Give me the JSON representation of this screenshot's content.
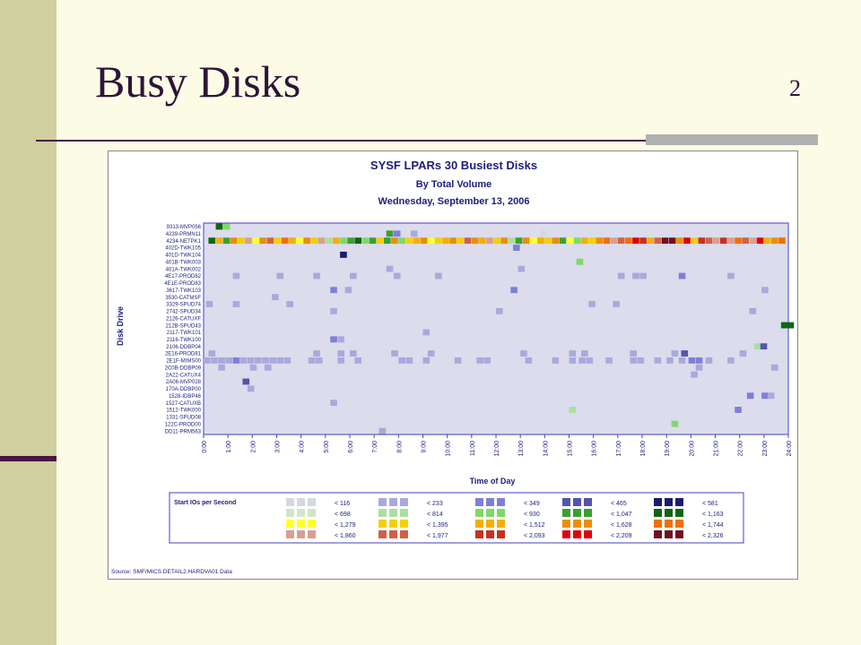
{
  "slide": {
    "title": "Busy Disks",
    "number": "2"
  },
  "chart_data": {
    "type": "heatmap",
    "title": "SYSF LPARs 30 Busiest Disks",
    "subtitle1": "By Total Volume",
    "subtitle2": "Wednesday, September 13, 2006",
    "xlabel": "Time of Day",
    "ylabel": "Disk Drive",
    "xlim": [
      0,
      24
    ],
    "x_ticks": [
      "0:00",
      "1:00",
      "2:00",
      "3:00",
      "4:00",
      "5:00",
      "6:00",
      "7:00",
      "8:00",
      "9:00",
      "10:00",
      "11:00",
      "12:00",
      "13:00",
      "14:00",
      "15:00",
      "16:00",
      "17:00",
      "18:00",
      "19:00",
      "20:00",
      "21:00",
      "22:00",
      "23:00",
      "24:00"
    ],
    "y_labels": [
      "9313-MVP056",
      "4239-PRMN11",
      "4234-NETPK1",
      "402D-TWK105",
      "401D-TWK104",
      "401B-TWK003",
      "401A-TWK002",
      "4E17-PROD82",
      "4E1E-PROD83",
      "3617-TWK103",
      "3530-CATMSF",
      "3329-SPUD74",
      "2742-SPUD34",
      "2126-CATUXF",
      "212B-SPUD43",
      "2117-TWK101",
      "2116-TWK100",
      "2106-DDBP04",
      "2E16-PROD81",
      "2E1F-MIMS00",
      "2C0B-DDBP09",
      "2A22-CATUX4",
      "2A06-MVP028",
      "170A-DDBP00",
      "1528-IDBP46",
      "1527-CATUXB",
      "1512-TWK000",
      "1331-SPUD08",
      "122C-PROD00",
      "DD11-PRM563"
    ],
    "legend_title": "Start IOs per Second",
    "legend": [
      {
        "label": "< 116",
        "colors": [
          "#d7d7e0",
          "#d7d7e0",
          "#d7d7e0"
        ]
      },
      {
        "label": "< 233",
        "colors": [
          "#a9a9dd",
          "#a9a9dd",
          "#a9a9dd"
        ]
      },
      {
        "label": "< 349",
        "colors": [
          "#7f7fd8",
          "#7f7fd8",
          "#7f7fd8"
        ]
      },
      {
        "label": "< 465",
        "colors": [
          "#5454b0",
          "#5454b0",
          "#5454b0"
        ]
      },
      {
        "label": "< 581",
        "colors": [
          "#1c1c6e",
          "#1c1c6e",
          "#1c1c6e"
        ]
      },
      {
        "label": "< 698",
        "colors": [
          "#d0e6c8",
          "#d0e6c8",
          "#d0e6c8"
        ]
      },
      {
        "label": "< 814",
        "colors": [
          "#a8e0a0",
          "#a8e0a0",
          "#a8e0a0"
        ]
      },
      {
        "label": "< 930",
        "colors": [
          "#7ed96a",
          "#7ed96a",
          "#7ed96a"
        ]
      },
      {
        "label": "< 1,047",
        "colors": [
          "#3aa030",
          "#3aa030",
          "#3aa030"
        ]
      },
      {
        "label": "< 1,163",
        "colors": [
          "#0e6614",
          "#0e6614",
          "#0e6614"
        ]
      },
      {
        "label": "< 1,279",
        "colors": [
          "#ffff30",
          "#ffff30",
          "#ffff30"
        ]
      },
      {
        "label": "< 1,395",
        "colors": [
          "#f5d000",
          "#f5d000",
          "#f5d000"
        ]
      },
      {
        "label": "< 1,512",
        "colors": [
          "#f2b000",
          "#f2b000",
          "#f2b000"
        ]
      },
      {
        "label": "< 1,628",
        "colors": [
          "#e89000",
          "#e89000",
          "#e89000"
        ]
      },
      {
        "label": "< 1,744",
        "colors": [
          "#f07000",
          "#f07000",
          "#f07000"
        ]
      },
      {
        "label": "< 1,860",
        "colors": [
          "#d8a090",
          "#d8a090",
          "#d8a090"
        ]
      },
      {
        "label": "< 1,977",
        "colors": [
          "#d06048",
          "#d06048",
          "#d06048"
        ]
      },
      {
        "label": "< 2,093",
        "colors": [
          "#c83020",
          "#c83020",
          "#c83020"
        ]
      },
      {
        "label": "< 2,209",
        "colors": [
          "#e00010",
          "#e00010",
          "#e00010"
        ]
      },
      {
        "label": "< 2,326",
        "colors": [
          "#6e1020",
          "#6e1020",
          "#6e1020"
        ]
      }
    ],
    "source": "Source: SMF/MICS DETAIL2.HARDVA01 Data",
    "background_color": "#dcdcec",
    "cells": [
      {
        "row": 0,
        "hour": 0.5,
        "level": 10
      },
      {
        "row": 0,
        "hour": 0.8,
        "level": 8
      },
      {
        "row": 1,
        "hour": 7.5,
        "level": 9
      },
      {
        "row": 1,
        "hour": 7.8,
        "level": 3
      },
      {
        "row": 1,
        "hour": 8.5,
        "level": 2
      },
      {
        "row": 1,
        "hour": 13.8,
        "level": 1
      },
      {
        "row": 2,
        "hour": 0.2,
        "level": 10
      },
      {
        "row": 2,
        "hour": 0.5,
        "level": 13
      },
      {
        "row": 2,
        "hour": 0.8,
        "level": 9
      },
      {
        "row": 2,
        "hour": 1.1,
        "level": 14
      },
      {
        "row": 2,
        "hour": 1.4,
        "level": 12
      },
      {
        "row": 2,
        "hour": 1.7,
        "level": 16
      },
      {
        "row": 2,
        "hour": 2.0,
        "level": 11
      },
      {
        "row": 2,
        "hour": 2.3,
        "level": 14
      },
      {
        "row": 2,
        "hour": 2.6,
        "level": 17
      },
      {
        "row": 2,
        "hour": 2.9,
        "level": 12
      },
      {
        "row": 2,
        "hour": 3.2,
        "level": 15
      },
      {
        "row": 2,
        "hour": 3.5,
        "level": 13
      },
      {
        "row": 2,
        "hour": 3.8,
        "level": 11
      },
      {
        "row": 2,
        "hour": 4.1,
        "level": 14
      },
      {
        "row": 2,
        "hour": 4.4,
        "level": 12
      },
      {
        "row": 2,
        "hour": 4.7,
        "level": 16
      },
      {
        "row": 2,
        "hour": 5.0,
        "level": 7
      },
      {
        "row": 2,
        "hour": 5.3,
        "level": 13
      },
      {
        "row": 2,
        "hour": 5.6,
        "level": 8
      },
      {
        "row": 2,
        "hour": 5.9,
        "level": 9
      },
      {
        "row": 2,
        "hour": 6.2,
        "level": 10
      },
      {
        "row": 2,
        "hour": 6.5,
        "level": 8
      },
      {
        "row": 2,
        "hour": 6.8,
        "level": 9
      },
      {
        "row": 2,
        "hour": 7.1,
        "level": 12
      },
      {
        "row": 2,
        "hour": 7.4,
        "level": 9
      },
      {
        "row": 2,
        "hour": 7.7,
        "level": 14
      },
      {
        "row": 2,
        "hour": 8.0,
        "level": 8
      },
      {
        "row": 2,
        "hour": 8.3,
        "level": 12
      },
      {
        "row": 2,
        "hour": 8.6,
        "level": 13
      },
      {
        "row": 2,
        "hour": 8.9,
        "level": 14
      },
      {
        "row": 2,
        "hour": 9.2,
        "level": 11
      },
      {
        "row": 2,
        "hour": 9.5,
        "level": 12
      },
      {
        "row": 2,
        "hour": 9.8,
        "level": 13
      },
      {
        "row": 2,
        "hour": 10.1,
        "level": 14
      },
      {
        "row": 2,
        "hour": 10.4,
        "level": 12
      },
      {
        "row": 2,
        "hour": 10.7,
        "level": 17
      },
      {
        "row": 2,
        "hour": 11.0,
        "level": 14
      },
      {
        "row": 2,
        "hour": 11.3,
        "level": 13
      },
      {
        "row": 2,
        "hour": 11.6,
        "level": 16
      },
      {
        "row": 2,
        "hour": 11.9,
        "level": 12
      },
      {
        "row": 2,
        "hour": 12.2,
        "level": 14
      },
      {
        "row": 2,
        "hour": 12.5,
        "level": 7
      },
      {
        "row": 2,
        "hour": 12.8,
        "level": 9
      },
      {
        "row": 2,
        "hour": 13.1,
        "level": 14
      },
      {
        "row": 2,
        "hour": 13.4,
        "level": 11
      },
      {
        "row": 2,
        "hour": 13.7,
        "level": 13
      },
      {
        "row": 2,
        "hour": 14.0,
        "level": 12
      },
      {
        "row": 2,
        "hour": 14.3,
        "level": 14
      },
      {
        "row": 2,
        "hour": 14.6,
        "level": 9
      },
      {
        "row": 2,
        "hour": 14.9,
        "level": 11
      },
      {
        "row": 2,
        "hour": 15.2,
        "level": 8
      },
      {
        "row": 2,
        "hour": 15.5,
        "level": 13
      },
      {
        "row": 2,
        "hour": 15.8,
        "level": 12
      },
      {
        "row": 2,
        "hour": 16.1,
        "level": 14
      },
      {
        "row": 2,
        "hour": 16.4,
        "level": 15
      },
      {
        "row": 2,
        "hour": 16.7,
        "level": 16
      },
      {
        "row": 2,
        "hour": 17.0,
        "level": 17
      },
      {
        "row": 2,
        "hour": 17.3,
        "level": 15
      },
      {
        "row": 2,
        "hour": 17.6,
        "level": 19
      },
      {
        "row": 2,
        "hour": 17.9,
        "level": 18
      },
      {
        "row": 2,
        "hour": 18.2,
        "level": 13
      },
      {
        "row": 2,
        "hour": 18.5,
        "level": 17
      },
      {
        "row": 2,
        "hour": 18.8,
        "level": 20
      },
      {
        "row": 2,
        "hour": 19.1,
        "level": 20
      },
      {
        "row": 2,
        "hour": 19.4,
        "level": 14
      },
      {
        "row": 2,
        "hour": 19.7,
        "level": 19
      },
      {
        "row": 2,
        "hour": 20.0,
        "level": 12
      },
      {
        "row": 2,
        "hour": 20.3,
        "level": 18
      },
      {
        "row": 2,
        "hour": 20.6,
        "level": 17
      },
      {
        "row": 2,
        "hour": 20.9,
        "level": 16
      },
      {
        "row": 2,
        "hour": 21.2,
        "level": 18
      },
      {
        "row": 2,
        "hour": 21.5,
        "level": 16
      },
      {
        "row": 2,
        "hour": 21.8,
        "level": 15
      },
      {
        "row": 2,
        "hour": 22.1,
        "level": 17
      },
      {
        "row": 2,
        "hour": 22.4,
        "level": 16
      },
      {
        "row": 2,
        "hour": 22.7,
        "level": 19
      },
      {
        "row": 2,
        "hour": 23.0,
        "level": 13
      },
      {
        "row": 2,
        "hour": 23.3,
        "level": 14
      },
      {
        "row": 2,
        "hour": 23.6,
        "level": 15
      },
      {
        "row": 3,
        "hour": 12.7,
        "level": 3
      },
      {
        "row": 4,
        "hour": 5.6,
        "level": 5
      },
      {
        "row": 5,
        "hour": 15.3,
        "level": 8
      },
      {
        "row": 6,
        "hour": 7.5,
        "level": 2
      },
      {
        "row": 6,
        "hour": 12.9,
        "level": 2
      },
      {
        "row": 7,
        "hour": 1.2,
        "level": 2
      },
      {
        "row": 7,
        "hour": 3.0,
        "level": 2
      },
      {
        "row": 7,
        "hour": 4.5,
        "level": 2
      },
      {
        "row": 7,
        "hour": 6.0,
        "level": 2
      },
      {
        "row": 7,
        "hour": 7.8,
        "level": 2
      },
      {
        "row": 7,
        "hour": 9.5,
        "level": 2
      },
      {
        "row": 7,
        "hour": 17.0,
        "level": 2
      },
      {
        "row": 7,
        "hour": 17.6,
        "level": 2
      },
      {
        "row": 7,
        "hour": 17.9,
        "level": 2
      },
      {
        "row": 7,
        "hour": 19.5,
        "level": 3
      },
      {
        "row": 7,
        "hour": 21.5,
        "level": 2
      },
      {
        "row": 9,
        "hour": 5.2,
        "level": 3
      },
      {
        "row": 9,
        "hour": 5.8,
        "level": 2
      },
      {
        "row": 9,
        "hour": 12.6,
        "level": 3
      },
      {
        "row": 9,
        "hour": 22.9,
        "level": 2
      },
      {
        "row": 10,
        "hour": 2.8,
        "level": 2
      },
      {
        "row": 11,
        "hour": 0.1,
        "level": 2
      },
      {
        "row": 11,
        "hour": 1.2,
        "level": 2
      },
      {
        "row": 11,
        "hour": 3.4,
        "level": 2
      },
      {
        "row": 11,
        "hour": 15.8,
        "level": 2
      },
      {
        "row": 11,
        "hour": 16.8,
        "level": 2
      },
      {
        "row": 12,
        "hour": 5.2,
        "level": 2
      },
      {
        "row": 12,
        "hour": 12.0,
        "level": 2
      },
      {
        "row": 12,
        "hour": 22.4,
        "level": 2
      },
      {
        "row": 14,
        "hour": 23.7,
        "level": 10
      },
      {
        "row": 14,
        "hour": 23.95,
        "level": 10
      },
      {
        "row": 15,
        "hour": 9.0,
        "level": 2
      },
      {
        "row": 16,
        "hour": 5.2,
        "level": 3
      },
      {
        "row": 16,
        "hour": 5.5,
        "level": 2
      },
      {
        "row": 17,
        "hour": 22.6,
        "level": 7
      },
      {
        "row": 17,
        "hour": 22.85,
        "level": 4
      },
      {
        "row": 18,
        "hour": 0.2,
        "level": 2
      },
      {
        "row": 18,
        "hour": 4.5,
        "level": 2
      },
      {
        "row": 18,
        "hour": 5.5,
        "level": 2
      },
      {
        "row": 18,
        "hour": 6.0,
        "level": 2
      },
      {
        "row": 18,
        "hour": 7.7,
        "level": 2
      },
      {
        "row": 18,
        "hour": 9.2,
        "level": 2
      },
      {
        "row": 18,
        "hour": 13.0,
        "level": 2
      },
      {
        "row": 18,
        "hour": 15.0,
        "level": 2
      },
      {
        "row": 18,
        "hour": 15.5,
        "level": 2
      },
      {
        "row": 18,
        "hour": 17.5,
        "level": 2
      },
      {
        "row": 18,
        "hour": 19.2,
        "level": 2
      },
      {
        "row": 18,
        "hour": 19.6,
        "level": 4
      },
      {
        "row": 18,
        "hour": 22.0,
        "level": 2
      },
      {
        "row": 19,
        "hour": 0.0,
        "level": 2
      },
      {
        "row": 19,
        "hour": 0.3,
        "level": 2
      },
      {
        "row": 19,
        "hour": 0.6,
        "level": 2
      },
      {
        "row": 19,
        "hour": 0.9,
        "level": 2
      },
      {
        "row": 19,
        "hour": 1.2,
        "level": 3
      },
      {
        "row": 19,
        "hour": 1.5,
        "level": 2
      },
      {
        "row": 19,
        "hour": 1.8,
        "level": 2
      },
      {
        "row": 19,
        "hour": 2.1,
        "level": 2
      },
      {
        "row": 19,
        "hour": 2.4,
        "level": 2
      },
      {
        "row": 19,
        "hour": 2.7,
        "level": 2
      },
      {
        "row": 19,
        "hour": 3.0,
        "level": 2
      },
      {
        "row": 19,
        "hour": 3.3,
        "level": 2
      },
      {
        "row": 19,
        "hour": 4.3,
        "level": 2
      },
      {
        "row": 19,
        "hour": 4.6,
        "level": 2
      },
      {
        "row": 19,
        "hour": 5.5,
        "level": 2
      },
      {
        "row": 19,
        "hour": 6.2,
        "level": 2
      },
      {
        "row": 19,
        "hour": 8.0,
        "level": 2
      },
      {
        "row": 19,
        "hour": 8.3,
        "level": 2
      },
      {
        "row": 19,
        "hour": 9.0,
        "level": 2
      },
      {
        "row": 19,
        "hour": 10.3,
        "level": 2
      },
      {
        "row": 19,
        "hour": 11.2,
        "level": 2
      },
      {
        "row": 19,
        "hour": 11.5,
        "level": 2
      },
      {
        "row": 19,
        "hour": 13.2,
        "level": 2
      },
      {
        "row": 19,
        "hour": 14.3,
        "level": 2
      },
      {
        "row": 19,
        "hour": 15.0,
        "level": 2
      },
      {
        "row": 19,
        "hour": 15.4,
        "level": 2
      },
      {
        "row": 19,
        "hour": 15.7,
        "level": 2
      },
      {
        "row": 19,
        "hour": 16.5,
        "level": 2
      },
      {
        "row": 19,
        "hour": 17.5,
        "level": 2
      },
      {
        "row": 19,
        "hour": 17.8,
        "level": 2
      },
      {
        "row": 19,
        "hour": 18.5,
        "level": 2
      },
      {
        "row": 19,
        "hour": 19.0,
        "level": 2
      },
      {
        "row": 19,
        "hour": 19.5,
        "level": 2
      },
      {
        "row": 19,
        "hour": 19.9,
        "level": 3
      },
      {
        "row": 19,
        "hour": 20.2,
        "level": 3
      },
      {
        "row": 19,
        "hour": 20.6,
        "level": 2
      },
      {
        "row": 19,
        "hour": 21.5,
        "level": 2
      },
      {
        "row": 20,
        "hour": 0.6,
        "level": 2
      },
      {
        "row": 20,
        "hour": 1.9,
        "level": 2
      },
      {
        "row": 20,
        "hour": 2.5,
        "level": 2
      },
      {
        "row": 20,
        "hour": 20.2,
        "level": 2
      },
      {
        "row": 20,
        "hour": 23.3,
        "level": 2
      },
      {
        "row": 21,
        "hour": 20.0,
        "level": 2
      },
      {
        "row": 22,
        "hour": 1.6,
        "level": 4
      },
      {
        "row": 23,
        "hour": 1.8,
        "level": 2
      },
      {
        "row": 24,
        "hour": 22.3,
        "level": 3
      },
      {
        "row": 24,
        "hour": 22.9,
        "level": 3
      },
      {
        "row": 24,
        "hour": 23.15,
        "level": 2
      },
      {
        "row": 25,
        "hour": 5.2,
        "level": 2
      },
      {
        "row": 26,
        "hour": 15.0,
        "level": 7
      },
      {
        "row": 26,
        "hour": 21.8,
        "level": 3
      },
      {
        "row": 28,
        "hour": 19.2,
        "level": 8
      },
      {
        "row": 29,
        "hour": 7.2,
        "level": 2
      }
    ]
  }
}
